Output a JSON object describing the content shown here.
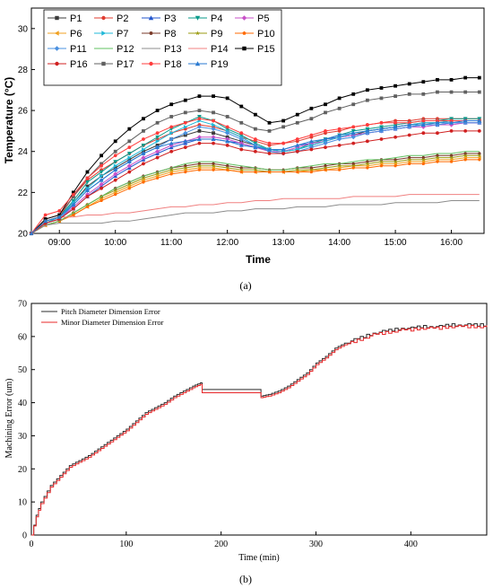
{
  "chart_data": [
    {
      "type": "line",
      "ylabel": "Temperature (°C)",
      "xlabel": "Time",
      "panel_label": "(a)",
      "ylim": [
        20,
        31
      ],
      "yticks": [
        "20",
        "22",
        "24",
        "26",
        "28",
        "30"
      ],
      "xlim": [
        "08:30",
        "16:35"
      ],
      "xticks": [
        "09:00",
        "10:00",
        "11:00",
        "12:00",
        "13:00",
        "14:00",
        "15:00",
        "16:00"
      ],
      "legend_position": "top-left",
      "x": [
        "08:30",
        "08:45",
        "09:00",
        "09:15",
        "09:30",
        "09:45",
        "10:00",
        "10:15",
        "10:30",
        "10:45",
        "11:00",
        "11:15",
        "11:30",
        "11:45",
        "12:00",
        "12:15",
        "12:30",
        "12:45",
        "13:00",
        "13:15",
        "13:30",
        "13:45",
        "14:00",
        "14:15",
        "14:30",
        "14:45",
        "15:00",
        "15:15",
        "15:30",
        "15:45",
        "16:00",
        "16:15",
        "16:30"
      ],
      "series": [
        {
          "name": "P1",
          "color": "#3b3b3b",
          "marker": "square",
          "values": [
            20.0,
            20.6,
            20.8,
            21.5,
            22.3,
            22.8,
            23.2,
            23.6,
            24.0,
            24.3,
            24.6,
            24.8,
            25.0,
            24.9,
            24.7,
            24.5,
            24.3,
            24.1,
            24.0,
            24.1,
            24.3,
            24.5,
            24.7,
            24.8,
            25.0,
            25.1,
            25.2,
            25.3,
            25.4,
            25.4,
            25.5,
            25.5,
            25.5
          ]
        },
        {
          "name": "P2",
          "color": "#e03c31",
          "marker": "circle",
          "values": [
            20.0,
            20.7,
            20.9,
            21.8,
            22.6,
            23.1,
            23.5,
            23.9,
            24.3,
            24.6,
            24.9,
            25.1,
            25.3,
            25.2,
            25.0,
            24.7,
            24.5,
            24.3,
            24.4,
            24.5,
            24.7,
            24.9,
            25.0,
            25.2,
            25.3,
            25.4,
            25.5,
            25.5,
            25.6,
            25.6,
            25.6,
            25.6,
            25.6
          ]
        },
        {
          "name": "P3",
          "color": "#2255cc",
          "marker": "triangle-up",
          "values": [
            20.0,
            20.5,
            20.7,
            21.2,
            21.8,
            22.3,
            22.8,
            23.2,
            23.6,
            23.9,
            24.2,
            24.4,
            24.6,
            24.6,
            24.5,
            24.4,
            24.2,
            24.1,
            24.1,
            24.3,
            24.4,
            24.6,
            24.7,
            24.8,
            24.9,
            25.0,
            25.1,
            25.2,
            25.3,
            25.3,
            25.4,
            25.4,
            25.4
          ]
        },
        {
          "name": "P4",
          "color": "#0a9a8a",
          "marker": "triangle-down",
          "values": [
            20.0,
            20.6,
            20.8,
            21.6,
            22.5,
            23.0,
            23.5,
            23.9,
            24.3,
            24.7,
            25.1,
            25.4,
            25.7,
            25.5,
            25.1,
            24.8,
            24.4,
            24.1,
            24.0,
            24.1,
            24.4,
            24.6,
            24.8,
            25.0,
            25.1,
            25.2,
            25.3,
            25.4,
            25.5,
            25.5,
            25.6,
            25.6,
            25.6
          ]
        },
        {
          "name": "P5",
          "color": "#c850c8",
          "marker": "diamond",
          "values": [
            20.0,
            20.5,
            20.7,
            21.3,
            21.9,
            22.4,
            22.9,
            23.3,
            23.7,
            24.0,
            24.3,
            24.5,
            24.7,
            24.7,
            24.6,
            24.4,
            24.2,
            24.0,
            24.0,
            24.2,
            24.4,
            24.5,
            24.7,
            24.8,
            24.9,
            25.0,
            25.1,
            25.2,
            25.2,
            25.3,
            25.3,
            25.4,
            25.4
          ]
        },
        {
          "name": "P6",
          "color": "#f0a020",
          "marker": "triangle-left",
          "values": [
            20.0,
            20.4,
            20.6,
            20.9,
            21.3,
            21.7,
            22.0,
            22.3,
            22.6,
            22.8,
            23.0,
            23.1,
            23.2,
            23.2,
            23.1,
            23.0,
            23.0,
            23.0,
            23.0,
            23.0,
            23.1,
            23.1,
            23.2,
            23.3,
            23.3,
            23.4,
            23.4,
            23.5,
            23.5,
            23.6,
            23.6,
            23.7,
            23.7
          ]
        },
        {
          "name": "P7",
          "color": "#20b8d8",
          "marker": "triangle-right",
          "values": [
            20.0,
            20.5,
            20.8,
            21.5,
            22.2,
            22.8,
            23.3,
            23.7,
            24.1,
            24.5,
            24.9,
            25.2,
            25.5,
            25.3,
            25.0,
            24.7,
            24.3,
            24.1,
            24.0,
            24.1,
            24.3,
            24.5,
            24.7,
            24.9,
            25.0,
            25.1,
            25.2,
            25.3,
            25.4,
            25.4,
            25.5,
            25.5,
            25.5
          ]
        },
        {
          "name": "P8",
          "color": "#7a3a28",
          "marker": "hexagon",
          "values": [
            20.0,
            20.4,
            20.6,
            21.0,
            21.4,
            21.8,
            22.2,
            22.5,
            22.8,
            23.0,
            23.2,
            23.3,
            23.4,
            23.4,
            23.3,
            23.2,
            23.2,
            23.1,
            23.1,
            23.2,
            23.2,
            23.3,
            23.4,
            23.4,
            23.5,
            23.6,
            23.6,
            23.7,
            23.7,
            23.8,
            23.8,
            23.9,
            23.9
          ]
        },
        {
          "name": "P9",
          "color": "#9a9a10",
          "marker": "star",
          "values": [
            20.0,
            20.4,
            20.6,
            21.0,
            21.4,
            21.8,
            22.1,
            22.4,
            22.7,
            22.9,
            23.1,
            23.2,
            23.3,
            23.3,
            23.2,
            23.1,
            23.1,
            23.0,
            23.0,
            23.1,
            23.1,
            23.2,
            23.3,
            23.3,
            23.4,
            23.5,
            23.5,
            23.6,
            23.6,
            23.7,
            23.7,
            23.8,
            23.8
          ]
        },
        {
          "name": "P10",
          "color": "#ff6a00",
          "marker": "pentagon",
          "values": [
            20.0,
            20.4,
            20.6,
            20.9,
            21.3,
            21.6,
            21.9,
            22.2,
            22.5,
            22.7,
            22.9,
            23.0,
            23.1,
            23.1,
            23.1,
            23.0,
            23.0,
            23.0,
            23.0,
            23.0,
            23.0,
            23.1,
            23.1,
            23.2,
            23.2,
            23.3,
            23.3,
            23.4,
            23.4,
            23.5,
            23.5,
            23.6,
            23.6
          ]
        },
        {
          "name": "P11",
          "color": "#4a90e0",
          "marker": "diamond",
          "values": [
            20.0,
            20.5,
            20.7,
            21.4,
            22.1,
            22.6,
            23.1,
            23.5,
            23.9,
            24.2,
            24.6,
            24.9,
            25.2,
            25.1,
            24.9,
            24.6,
            24.3,
            24.0,
            23.9,
            24.0,
            24.2,
            24.4,
            24.6,
            24.7,
            24.9,
            25.0,
            25.1,
            25.2,
            25.3,
            25.3,
            25.4,
            25.4,
            25.4
          ]
        },
        {
          "name": "P12",
          "color": "#60c060",
          "marker": "none",
          "values": [
            20.0,
            20.4,
            20.6,
            21.0,
            21.4,
            21.8,
            22.2,
            22.5,
            22.8,
            23.0,
            23.2,
            23.4,
            23.5,
            23.5,
            23.4,
            23.3,
            23.2,
            23.1,
            23.1,
            23.2,
            23.3,
            23.4,
            23.4,
            23.5,
            23.6,
            23.6,
            23.7,
            23.8,
            23.8,
            23.9,
            23.9,
            24.0,
            24.0
          ]
        },
        {
          "name": "P13",
          "color": "#8c8c8c",
          "marker": "none",
          "values": [
            20.0,
            20.4,
            20.5,
            20.5,
            20.5,
            20.5,
            20.6,
            20.6,
            20.7,
            20.8,
            20.9,
            21.0,
            21.0,
            21.0,
            21.1,
            21.1,
            21.2,
            21.2,
            21.2,
            21.3,
            21.3,
            21.3,
            21.4,
            21.4,
            21.4,
            21.4,
            21.5,
            21.5,
            21.5,
            21.5,
            21.6,
            21.6,
            21.6
          ]
        },
        {
          "name": "P14",
          "color": "#f08080",
          "marker": "none",
          "values": [
            20.0,
            20.6,
            20.8,
            20.8,
            20.9,
            20.9,
            21.0,
            21.0,
            21.1,
            21.2,
            21.3,
            21.3,
            21.4,
            21.4,
            21.5,
            21.5,
            21.6,
            21.6,
            21.7,
            21.7,
            21.7,
            21.7,
            21.7,
            21.8,
            21.8,
            21.8,
            21.8,
            21.9,
            21.9,
            21.9,
            21.9,
            21.9,
            21.9
          ]
        },
        {
          "name": "P15",
          "color": "#000000",
          "marker": "square",
          "values": [
            20.0,
            20.7,
            20.9,
            22.0,
            23.0,
            23.8,
            24.5,
            25.1,
            25.6,
            26.0,
            26.3,
            26.5,
            26.7,
            26.7,
            26.6,
            26.2,
            25.8,
            25.4,
            25.5,
            25.8,
            26.1,
            26.3,
            26.6,
            26.8,
            27.0,
            27.1,
            27.2,
            27.3,
            27.4,
            27.5,
            27.5,
            27.6,
            27.6
          ]
        },
        {
          "name": "P16",
          "color": "#d02020",
          "marker": "circle",
          "values": [
            20.0,
            20.5,
            20.7,
            21.2,
            21.8,
            22.2,
            22.6,
            23.0,
            23.4,
            23.7,
            24.0,
            24.2,
            24.4,
            24.4,
            24.3,
            24.1,
            24.0,
            23.9,
            23.9,
            24.0,
            24.1,
            24.2,
            24.3,
            24.4,
            24.5,
            24.6,
            24.7,
            24.8,
            24.9,
            24.9,
            25.0,
            25.0,
            25.0
          ]
        },
        {
          "name": "P17",
          "color": "#606060",
          "marker": "square",
          "values": [
            20.0,
            20.6,
            20.8,
            21.8,
            22.7,
            23.4,
            24.0,
            24.5,
            25.0,
            25.4,
            25.7,
            25.9,
            26.0,
            25.9,
            25.7,
            25.4,
            25.1,
            25.0,
            25.2,
            25.4,
            25.6,
            25.9,
            26.1,
            26.3,
            26.5,
            26.6,
            26.7,
            26.8,
            26.8,
            26.9,
            26.9,
            26.9,
            26.9
          ]
        },
        {
          "name": "P18",
          "color": "#ff3c3c",
          "marker": "circle",
          "values": [
            20.0,
            20.9,
            21.1,
            21.9,
            22.7,
            23.3,
            23.8,
            24.2,
            24.6,
            24.9,
            25.2,
            25.4,
            25.6,
            25.5,
            25.2,
            24.9,
            24.6,
            24.4,
            24.4,
            24.6,
            24.8,
            25.0,
            25.1,
            25.2,
            25.3,
            25.4,
            25.4,
            25.4,
            25.5,
            25.5,
            25.5,
            25.5,
            25.5
          ]
        },
        {
          "name": "P19",
          "color": "#2a7ad0",
          "marker": "triangle-up",
          "values": [
            20.0,
            20.6,
            20.8,
            21.4,
            22.1,
            22.6,
            23.1,
            23.5,
            23.9,
            24.2,
            24.4,
            24.5,
            24.6,
            24.6,
            24.5,
            24.3,
            24.2,
            24.1,
            24.1,
            24.3,
            24.5,
            24.6,
            24.8,
            24.9,
            25.0,
            25.1,
            25.2,
            25.3,
            25.3,
            25.4,
            25.4,
            25.5,
            25.5
          ]
        }
      ]
    },
    {
      "type": "line",
      "ylabel": "Machining Error (um)",
      "xlabel": "Time (min)",
      "panel_label": "(b)",
      "xlim": [
        0,
        480
      ],
      "ylim": [
        0,
        70
      ],
      "xticks": [
        0,
        100,
        200,
        300,
        400
      ],
      "yticks": [
        0,
        10,
        20,
        30,
        40,
        50,
        60,
        70
      ],
      "legend_position": "top-left",
      "x": [
        0,
        5,
        10,
        20,
        30,
        40,
        50,
        60,
        70,
        80,
        90,
        100,
        110,
        120,
        130,
        140,
        150,
        160,
        170,
        178,
        180,
        240,
        242,
        250,
        260,
        270,
        280,
        290,
        300,
        310,
        320,
        330,
        340,
        350,
        360,
        370,
        380,
        390,
        400,
        410,
        420,
        430,
        440,
        450,
        460,
        470,
        480
      ],
      "series": [
        {
          "name": "Pitch Diameter Dimension Error",
          "color": "#2b2b2b",
          "values": [
            0,
            6,
            10,
            15,
            18,
            21,
            22.5,
            24,
            26,
            28,
            30,
            32,
            34.5,
            37,
            38.5,
            40,
            42,
            43.5,
            45,
            46,
            44,
            44,
            42,
            42.5,
            43.5,
            45,
            47,
            49,
            52,
            54,
            56.5,
            58,
            59,
            60,
            61,
            61.5,
            62,
            62.5,
            62.5,
            63,
            63,
            63,
            63.5,
            63.5,
            63.5,
            63.5,
            63.5
          ]
        },
        {
          "name": "Minor Diameter Dimension Error",
          "color": "#e8282a",
          "values": [
            0,
            5.5,
            9.5,
            14.5,
            17.5,
            20.5,
            22,
            23.5,
            25.5,
            27.5,
            29.5,
            31.5,
            34,
            36.5,
            38,
            39.5,
            41.5,
            43,
            44.5,
            45.5,
            43,
            43,
            41.5,
            42,
            43,
            44.5,
            46.5,
            48.5,
            51.5,
            53.5,
            56,
            57.5,
            58.5,
            59.5,
            60.5,
            61,
            61.5,
            62,
            62,
            62.5,
            62.5,
            62.5,
            63,
            63,
            63,
            63,
            63
          ]
        }
      ]
    }
  ]
}
